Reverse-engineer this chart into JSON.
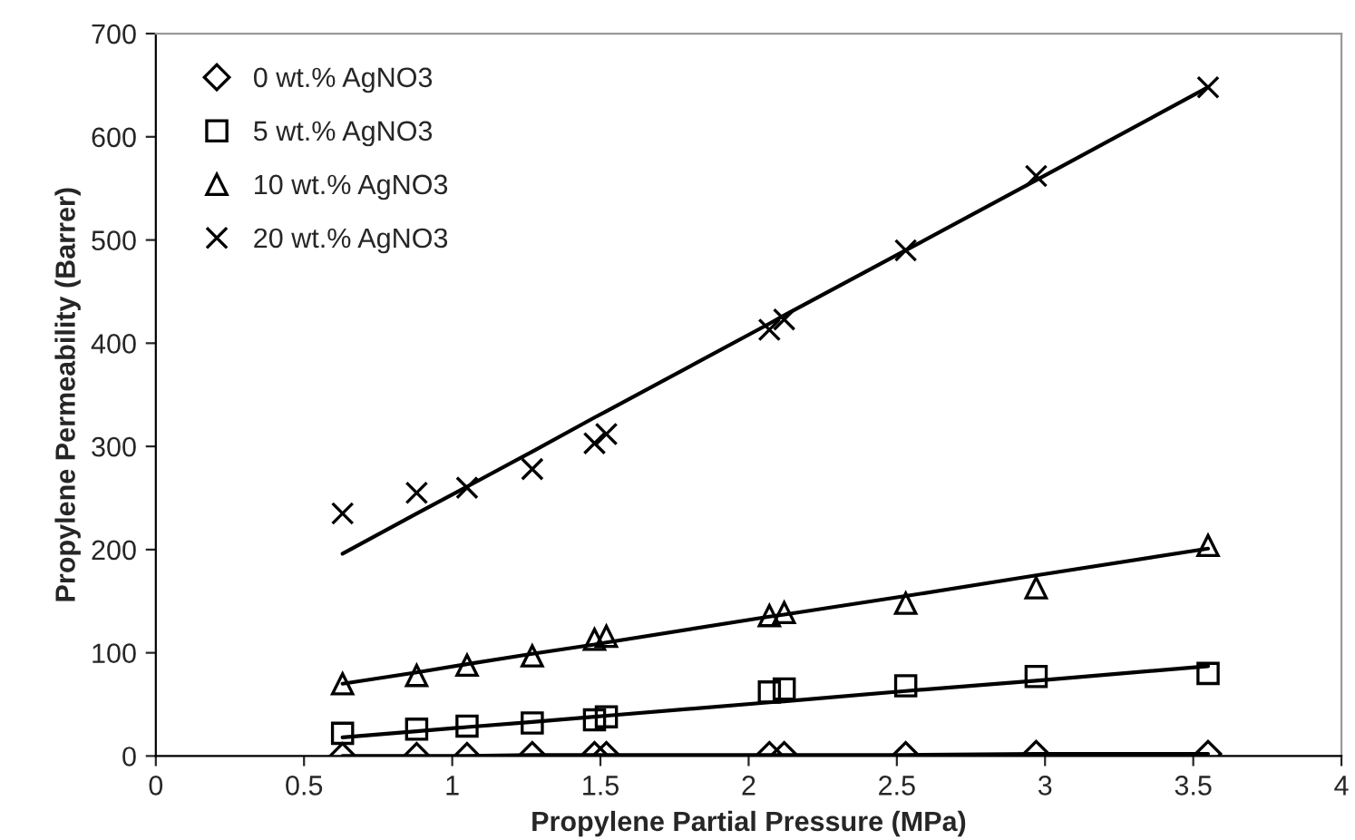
{
  "chart_data": {
    "type": "scatter",
    "xlabel": "Propylene Partial Pressure (MPa)",
    "ylabel": "Propylene Permeability (Barrer)",
    "x": [
      0.63,
      0.88,
      1.05,
      1.27,
      1.48,
      1.52,
      2.07,
      2.12,
      2.53,
      2.97,
      3.55
    ],
    "series": [
      {
        "name": "0 wt.% AgNO3",
        "color": "#000000",
        "marker": "diamond",
        "values": [
          0,
          0,
          0,
          1,
          1,
          1,
          1,
          1,
          1,
          2,
          2
        ]
      },
      {
        "name": "5 wt.% AgNO3",
        "color": "#000000",
        "marker": "square",
        "values": [
          22,
          26,
          29,
          32,
          35,
          38,
          62,
          65,
          68,
          77,
          80
        ]
      },
      {
        "name": "10 wt.% AgNO3",
        "color": "#000000",
        "marker": "triangle",
        "values": [
          70,
          78,
          88,
          97,
          113,
          116,
          136,
          139,
          148,
          163,
          204
        ]
      },
      {
        "name": "20 wt.% AgNO3",
        "color": "#000000",
        "marker": "cross",
        "values": [
          235,
          255,
          260,
          278,
          303,
          312,
          413,
          423,
          490,
          562,
          648
        ]
      },
      {
        "type": "line",
        "color": "#000000",
        "values": [
          0,
          0,
          0,
          1,
          1,
          1,
          1,
          1,
          1,
          2,
          2
        ]
      },
      {
        "type": "line",
        "color": "#000000",
        "values": [
          18,
          24,
          28,
          33,
          38,
          39,
          52,
          53,
          63,
          73,
          87
        ]
      },
      {
        "type": "line",
        "color": "#000000",
        "values": [
          70,
          81,
          89,
          99,
          108,
          110,
          135,
          137,
          155,
          175,
          201
        ]
      },
      {
        "type": "line",
        "color": "#000000",
        "values": [
          196,
          235,
          261,
          295,
          328,
          334,
          419,
          427,
          490,
          558,
          648
        ]
      }
    ],
    "xlim": [
      0,
      4
    ],
    "xticks": [
      0,
      0.5,
      1,
      1.5,
      2,
      2.5,
      3,
      3.5,
      4
    ],
    "ylim": [
      0,
      700
    ],
    "yticks": [
      0,
      100,
      200,
      300,
      400,
      500,
      600,
      700
    ],
    "grid": false,
    "legend": "top left"
  }
}
